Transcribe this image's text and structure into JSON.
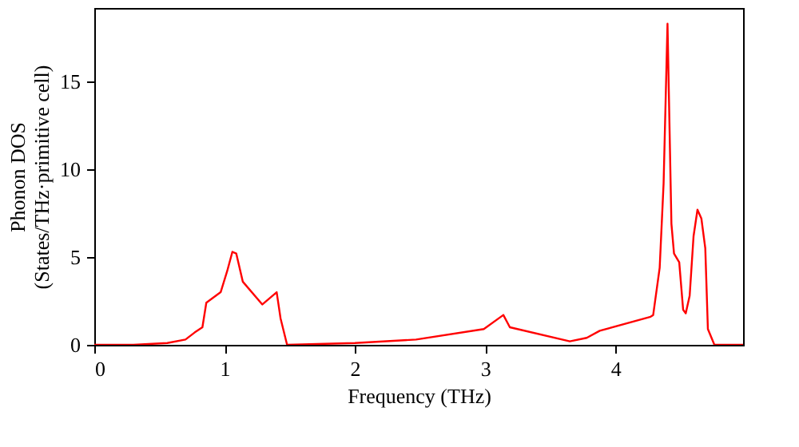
{
  "chart_data": {
    "type": "line",
    "xlabel": "Frequency (THz)",
    "ylabel": "Phonon DOS\n(States/THz·primitive cell)",
    "xlim": [
      0,
      4.98
    ],
    "ylim": [
      0,
      19.2
    ],
    "xticks": [
      0,
      1,
      2,
      3,
      4
    ],
    "yticks": [
      0,
      5,
      10,
      15
    ],
    "grid": false,
    "marker": "none",
    "line_style": "solid",
    "series": [
      {
        "color": "#ff0000",
        "x": [
          0,
          0.3,
          0.56,
          0.7,
          0.77,
          0.83,
          0.86,
          0.97,
          1.02,
          1.06,
          1.09,
          1.14,
          1.29,
          1.4,
          1.43,
          1.48,
          2.0,
          2.47,
          2.99,
          3.14,
          3.19,
          3.65,
          3.78,
          3.88,
          4.27,
          4.29,
          4.34,
          4.37,
          4.4,
          4.43,
          4.45,
          4.49,
          4.52,
          4.54,
          4.57,
          4.6,
          4.63,
          4.66,
          4.69,
          4.71,
          4.76,
          4.98
        ],
        "values": [
          0,
          0,
          0.1,
          0.3,
          0.7,
          1.0,
          2.4,
          3.0,
          4.2,
          5.3,
          5.2,
          3.6,
          2.3,
          3.0,
          1.5,
          0,
          0.1,
          0.3,
          0.9,
          1.7,
          1.0,
          0.2,
          0.4,
          0.8,
          1.6,
          1.7,
          4.4,
          9.2,
          18.3,
          6.9,
          5.2,
          4.7,
          2.0,
          1.8,
          2.8,
          6.2,
          7.7,
          7.2,
          5.5,
          0.9,
          0.0,
          0.0
        ]
      }
    ]
  }
}
